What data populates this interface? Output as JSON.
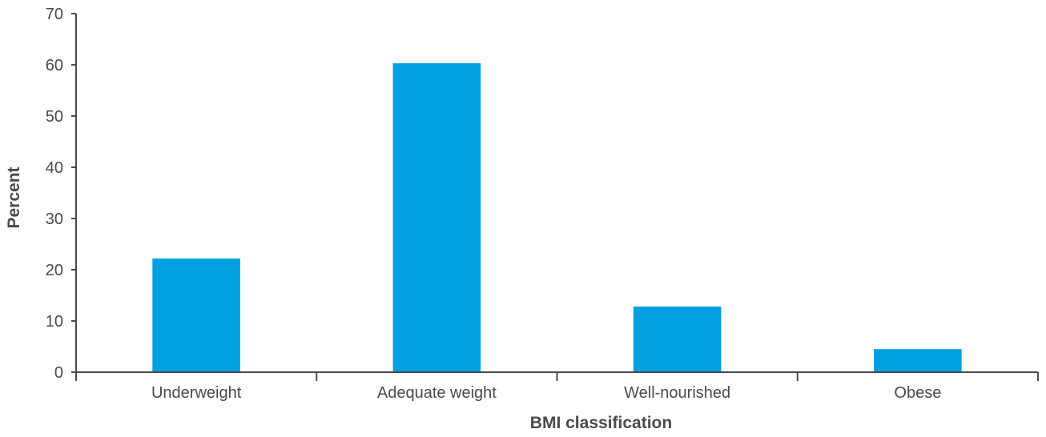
{
  "chart_data": {
    "type": "bar",
    "title": "",
    "xlabel": "BMI classification",
    "ylabel": "Percent",
    "categories": [
      "Underweight",
      "Adequate weight",
      "Well-nourished",
      "Obese"
    ],
    "values": [
      22.2,
      60.3,
      12.8,
      4.5
    ],
    "ylim": [
      0,
      70
    ],
    "yticks": [
      "0",
      "10",
      "20",
      "30",
      "40",
      "50",
      "60",
      "70"
    ],
    "grid": false,
    "legend": "none",
    "bar_color": "#009FE0"
  }
}
